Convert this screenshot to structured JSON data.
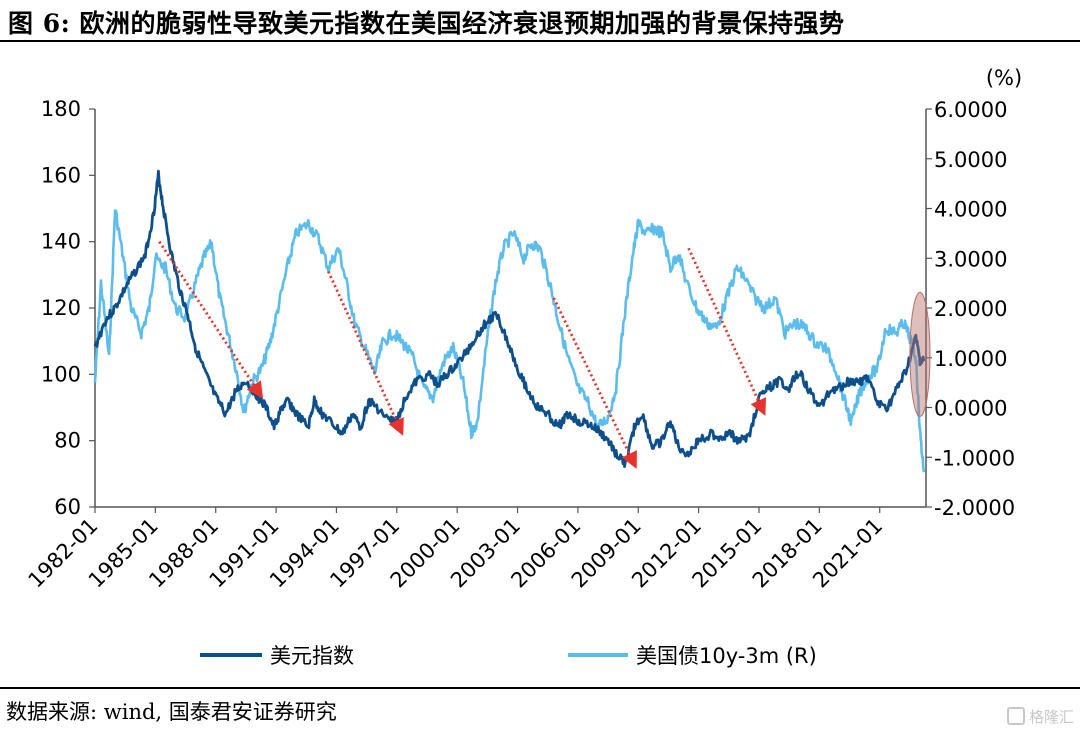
{
  "figure": {
    "title": "图 6: 欧洲的脆弱性导致美元指数在美国经济衰退预期加强的背景保持强势",
    "source": "数据来源: wind, 国泰君安证券研究",
    "watermark": "格隆汇"
  },
  "chart_data": {
    "type": "line",
    "left_axis": {
      "min": 60,
      "max": 180,
      "ticks": [
        "60",
        "80",
        "100",
        "120",
        "140",
        "160",
        "180"
      ]
    },
    "right_axis": {
      "unit": "(%)",
      "min": -2,
      "max": 6,
      "ticks": [
        "-2.0000",
        "-1.0000",
        "0.0000",
        "1.0000",
        "2.0000",
        "3.0000",
        "4.0000",
        "5.0000",
        "6.0000"
      ]
    },
    "x_axis": {
      "start": 1982.0,
      "end": 2023.3,
      "ticks": [
        "1982-01",
        "1985-01",
        "1988-01",
        "1991-01",
        "1994-01",
        "1997-01",
        "2000-01",
        "2003-01",
        "2006-01",
        "2009-01",
        "2012-01",
        "2015-01",
        "2018-01",
        "2021-01"
      ],
      "tick_years": [
        1982,
        1985,
        1988,
        1991,
        1994,
        1997,
        2000,
        2003,
        2006,
        2009,
        2012,
        2015,
        2018,
        2021
      ]
    },
    "series": [
      {
        "name": "美元指数",
        "axis": "left",
        "color": "#0d4f8b",
        "points": [
          [
            1982.0,
            108
          ],
          [
            1982.5,
            116
          ],
          [
            1983.0,
            120
          ],
          [
            1983.5,
            126
          ],
          [
            1984.0,
            131
          ],
          [
            1984.5,
            136
          ],
          [
            1984.9,
            148
          ],
          [
            1985.15,
            160
          ],
          [
            1985.4,
            150
          ],
          [
            1985.8,
            136
          ],
          [
            1986.2,
            126
          ],
          [
            1986.6,
            118
          ],
          [
            1987.0,
            108
          ],
          [
            1987.5,
            100
          ],
          [
            1988.0,
            93
          ],
          [
            1988.5,
            88
          ],
          [
            1989.0,
            95
          ],
          [
            1989.5,
            98
          ],
          [
            1990.0,
            94
          ],
          [
            1990.5,
            90
          ],
          [
            1990.9,
            84
          ],
          [
            1991.3,
            90
          ],
          [
            1991.6,
            92
          ],
          [
            1992.0,
            88
          ],
          [
            1992.6,
            84
          ],
          [
            1992.9,
            92
          ],
          [
            1993.3,
            88
          ],
          [
            1993.8,
            85
          ],
          [
            1994.3,
            82
          ],
          [
            1994.8,
            88
          ],
          [
            1995.2,
            84
          ],
          [
            1995.6,
            92
          ],
          [
            1996.0,
            90
          ],
          [
            1996.6,
            86
          ],
          [
            1997.0,
            86
          ],
          [
            1997.5,
            94
          ],
          [
            1998.0,
            98
          ],
          [
            1998.6,
            100
          ],
          [
            1999.0,
            97
          ],
          [
            1999.5,
            100
          ],
          [
            2000.0,
            103
          ],
          [
            2000.6,
            108
          ],
          [
            2001.0,
            112
          ],
          [
            2001.5,
            116
          ],
          [
            2002.0,
            118
          ],
          [
            2002.5,
            110
          ],
          [
            2003.0,
            102
          ],
          [
            2003.5,
            95
          ],
          [
            2004.0,
            90
          ],
          [
            2004.5,
            88
          ],
          [
            2005.0,
            84
          ],
          [
            2005.5,
            88
          ],
          [
            2006.0,
            86
          ],
          [
            2006.5,
            85
          ],
          [
            2007.0,
            83
          ],
          [
            2007.5,
            80
          ],
          [
            2008.0,
            75
          ],
          [
            2008.4,
            73
          ],
          [
            2008.8,
            84
          ],
          [
            2009.2,
            88
          ],
          [
            2009.7,
            78
          ],
          [
            2010.2,
            80
          ],
          [
            2010.6,
            86
          ],
          [
            2011.0,
            78
          ],
          [
            2011.5,
            76
          ],
          [
            2012.0,
            80
          ],
          [
            2012.6,
            82
          ],
          [
            2013.0,
            81
          ],
          [
            2013.6,
            82
          ],
          [
            2014.0,
            80
          ],
          [
            2014.5,
            81
          ],
          [
            2015.0,
            93
          ],
          [
            2015.5,
            96
          ],
          [
            2016.0,
            98
          ],
          [
            2016.5,
            96
          ],
          [
            2017.0,
            101
          ],
          [
            2017.5,
            95
          ],
          [
            2018.0,
            90
          ],
          [
            2018.5,
            95
          ],
          [
            2019.0,
            96
          ],
          [
            2019.5,
            98
          ],
          [
            2020.0,
            98
          ],
          [
            2020.4,
            99
          ],
          [
            2020.9,
            91
          ],
          [
            2021.4,
            90
          ],
          [
            2021.9,
            96
          ],
          [
            2022.3,
            101
          ],
          [
            2022.8,
            111
          ],
          [
            2023.0,
            104
          ],
          [
            2023.2,
            104
          ]
        ]
      },
      {
        "name": "美国债10y-3m (R)",
        "axis": "right",
        "color": "#5bbdee",
        "points": [
          [
            1982.0,
            0.5
          ],
          [
            1982.3,
            2.5
          ],
          [
            1982.7,
            1.0
          ],
          [
            1983.0,
            4.0
          ],
          [
            1983.4,
            3.0
          ],
          [
            1983.8,
            2.0
          ],
          [
            1984.3,
            1.5
          ],
          [
            1984.7,
            2.0
          ],
          [
            1985.0,
            3.0
          ],
          [
            1985.5,
            2.8
          ],
          [
            1986.0,
            2.0
          ],
          [
            1986.5,
            1.8
          ],
          [
            1987.0,
            2.5
          ],
          [
            1987.4,
            3.0
          ],
          [
            1987.8,
            3.3
          ],
          [
            1988.2,
            2.2
          ],
          [
            1988.6,
            1.5
          ],
          [
            1989.0,
            0.8
          ],
          [
            1989.4,
            -0.1
          ],
          [
            1989.8,
            0.5
          ],
          [
            1990.3,
            0.8
          ],
          [
            1990.7,
            1.3
          ],
          [
            1991.1,
            2.0
          ],
          [
            1991.6,
            2.9
          ],
          [
            1992.0,
            3.5
          ],
          [
            1992.6,
            3.7
          ],
          [
            1993.1,
            3.4
          ],
          [
            1993.6,
            2.8
          ],
          [
            1994.1,
            3.2
          ],
          [
            1994.5,
            2.5
          ],
          [
            1994.9,
            1.7
          ],
          [
            1995.4,
            1.2
          ],
          [
            1995.9,
            0.7
          ],
          [
            1996.3,
            1.3
          ],
          [
            1996.8,
            1.5
          ],
          [
            1997.3,
            1.3
          ],
          [
            1997.8,
            1.0
          ],
          [
            1998.3,
            0.4
          ],
          [
            1998.8,
            0.2
          ],
          [
            1999.3,
            0.9
          ],
          [
            1999.8,
            1.2
          ],
          [
            2000.3,
            0.5
          ],
          [
            2000.7,
            -0.5
          ],
          [
            2001.0,
            -0.3
          ],
          [
            2001.5,
            1.4
          ],
          [
            2001.9,
            2.5
          ],
          [
            2002.3,
            3.2
          ],
          [
            2002.8,
            3.5
          ],
          [
            2003.3,
            3.0
          ],
          [
            2003.7,
            3.3
          ],
          [
            2004.1,
            3.2
          ],
          [
            2004.6,
            2.5
          ],
          [
            2005.0,
            1.8
          ],
          [
            2005.5,
            1.0
          ],
          [
            2006.0,
            0.4
          ],
          [
            2006.5,
            0.1
          ],
          [
            2007.0,
            -0.4
          ],
          [
            2007.5,
            -0.2
          ],
          [
            2007.9,
            0.4
          ],
          [
            2008.3,
            1.8
          ],
          [
            2008.7,
            3.0
          ],
          [
            2009.0,
            3.7
          ],
          [
            2009.4,
            3.5
          ],
          [
            2009.8,
            3.6
          ],
          [
            2010.2,
            3.5
          ],
          [
            2010.6,
            2.8
          ],
          [
            2011.0,
            3.1
          ],
          [
            2011.4,
            2.5
          ],
          [
            2011.9,
            2.0
          ],
          [
            2012.4,
            1.7
          ],
          [
            2012.9,
            1.6
          ],
          [
            2013.4,
            2.2
          ],
          [
            2013.9,
            2.8
          ],
          [
            2014.3,
            2.6
          ],
          [
            2014.8,
            2.2
          ],
          [
            2015.3,
            2.0
          ],
          [
            2015.8,
            2.2
          ],
          [
            2016.3,
            1.5
          ],
          [
            2016.8,
            1.7
          ],
          [
            2017.3,
            1.6
          ],
          [
            2017.8,
            1.3
          ],
          [
            2018.3,
            1.2
          ],
          [
            2018.8,
            0.8
          ],
          [
            2019.2,
            0.2
          ],
          [
            2019.6,
            -0.3
          ],
          [
            2020.0,
            0.3
          ],
          [
            2020.4,
            0.6
          ],
          [
            2020.9,
            0.8
          ],
          [
            2021.3,
            1.6
          ],
          [
            2021.8,
            1.5
          ],
          [
            2022.2,
            1.7
          ],
          [
            2022.5,
            1.4
          ],
          [
            2022.8,
            1.0
          ],
          [
            2023.0,
            -0.5
          ],
          [
            2023.2,
            -1.3
          ]
        ]
      }
    ],
    "legend_position": "bottom",
    "annotations": {
      "arrows": [
        [
          1985.2,
          140,
          1990.2,
          94
        ],
        [
          1993.6,
          131,
          1997.2,
          83
        ],
        [
          2004.8,
          123,
          2008.8,
          73
        ],
        [
          2011.5,
          138,
          2015.2,
          89
        ]
      ],
      "highlight": {
        "x": 2023.0,
        "y": 106,
        "color": "#b5706b"
      }
    }
  }
}
